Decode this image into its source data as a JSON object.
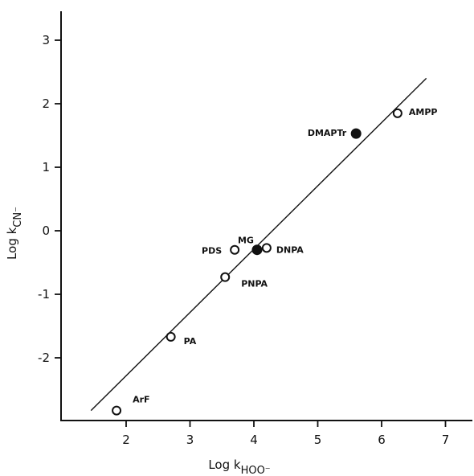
{
  "chart_data": {
    "type": "scatter",
    "xlabel": "Log k",
    "xlabel_sub": "HOO⁻",
    "ylabel": "Log k",
    "ylabel_sub": "CN⁻",
    "xlim": [
      1.0,
      7.3
    ],
    "ylim": [
      -3.0,
      3.45
    ],
    "xticks": [
      2,
      3,
      4,
      5,
      6,
      7
    ],
    "yticks": [
      -2,
      -1,
      0,
      1,
      2,
      3
    ],
    "fit_line": {
      "x": [
        1.45,
        6.7
      ],
      "y": [
        -2.83,
        2.4
      ]
    },
    "points": [
      {
        "label": "ArF",
        "x": 1.85,
        "y": -2.83,
        "filled": false
      },
      {
        "label": "PA",
        "x": 2.7,
        "y": -1.67,
        "filled": false
      },
      {
        "label": "PNPA",
        "x": 3.55,
        "y": -0.73,
        "filled": false
      },
      {
        "label": "PDS",
        "x": 3.7,
        "y": -0.3,
        "filled": false
      },
      {
        "label": "MG",
        "x": 4.05,
        "y": -0.3,
        "filled": true
      },
      {
        "label": "DNPA",
        "x": 4.2,
        "y": -0.27,
        "filled": false
      },
      {
        "label": "DMAPTr",
        "x": 5.6,
        "y": 1.53,
        "filled": true
      },
      {
        "label": "AMPP",
        "x": 6.25,
        "y": 1.85,
        "filled": false
      }
    ]
  }
}
